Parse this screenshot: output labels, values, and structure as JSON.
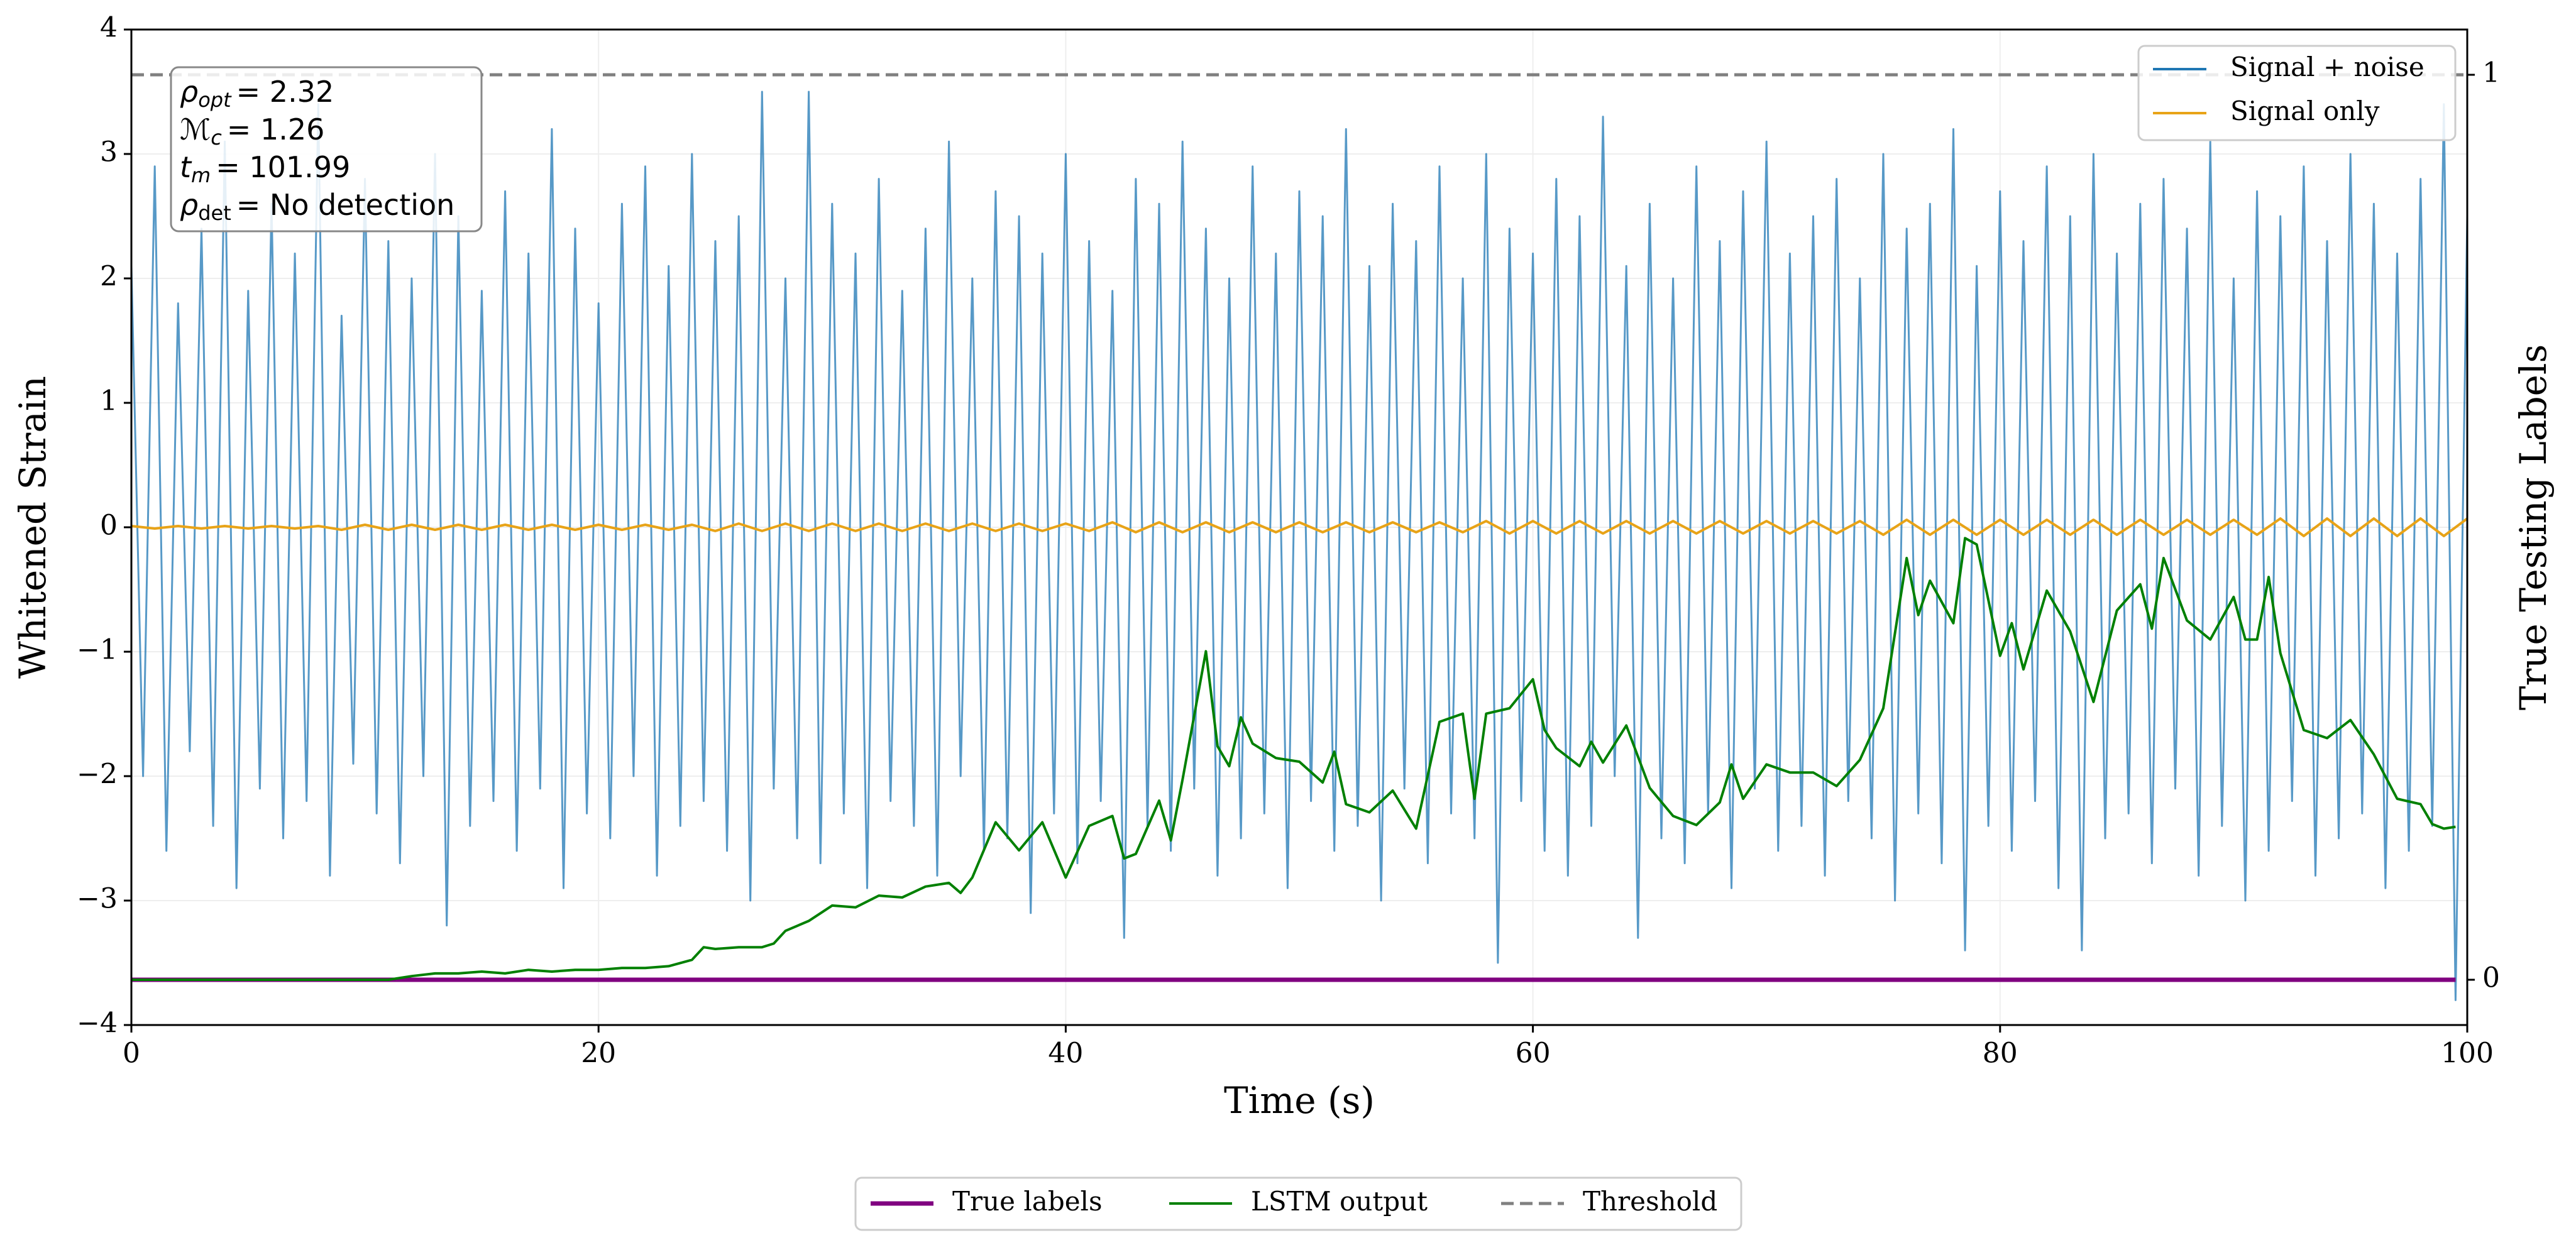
{
  "chart_data": {
    "type": "line",
    "xlabel": "Time (s)",
    "ylabel": "Whitened Strain",
    "y2label": "True Testing Labels",
    "xlim": [
      0,
      100
    ],
    "xticks": [
      0,
      20,
      40,
      60,
      80,
      100
    ],
    "ylim": [
      -4,
      4
    ],
    "yticks": [
      {
        "value": -4,
        "label": "−4"
      },
      {
        "value": -3,
        "label": "−3"
      },
      {
        "value": -2,
        "label": "−2"
      },
      {
        "value": -1,
        "label": "−1"
      },
      0,
      1,
      2,
      3,
      4
    ],
    "y2lim": [
      -0.05,
      1.05
    ],
    "y2ticks": [
      0,
      1
    ],
    "grid": true,
    "legend": "upper right",
    "legend2": "lower center",
    "annotations": [
      {
        "symbol": "ρ",
        "subscript": "opt",
        "text": "= 2.32"
      },
      {
        "symbol": "ℳ",
        "subscript": "c",
        "text": "= 1.26"
      },
      {
        "symbol": "t",
        "subscript": "m",
        "text": "= 101.99"
      },
      {
        "symbol": "ρ",
        "subscript": "det",
        "text": "= No detection"
      }
    ],
    "series": [
      {
        "name": "Signal + noise",
        "color": "#1f77b4",
        "x": [
          0,
          0.5,
          1,
          1.5,
          2,
          2.5,
          3,
          3.5,
          4,
          4.5,
          5,
          5.5,
          6,
          6.5,
          7,
          7.5,
          8,
          8.5,
          9,
          9.5,
          10,
          10.5,
          11,
          11.5,
          12,
          12.5,
          13,
          13.5,
          14,
          14.5,
          15,
          15.5,
          16,
          16.5,
          17,
          17.5,
          18,
          18.5,
          19,
          19.5,
          20,
          20.5,
          21,
          21.5,
          22,
          22.5,
          23,
          23.5,
          24,
          24.5,
          25,
          25.5,
          26,
          26.5,
          27,
          27.5,
          28,
          28.5,
          29,
          29.5,
          30,
          30.5,
          31,
          31.5,
          32,
          32.5,
          33,
          33.5,
          34,
          34.5,
          35,
          35.5,
          36,
          36.5,
          37,
          37.5,
          38,
          38.5,
          39,
          39.5,
          40,
          40.5,
          41,
          41.5,
          42,
          42.5,
          43,
          43.5,
          44,
          44.5,
          45,
          45.5,
          46,
          46.5,
          47,
          47.5,
          48,
          48.5,
          49,
          49.5,
          50,
          50.5,
          51,
          51.5,
          52,
          52.5,
          53,
          53.5,
          54,
          54.5,
          55,
          55.5,
          56,
          56.5,
          57,
          57.5,
          58,
          58.5,
          59,
          59.5,
          60,
          60.5,
          61,
          61.5,
          62,
          62.5,
          63,
          63.5,
          64,
          64.5,
          65,
          65.5,
          66,
          66.5,
          67,
          67.5,
          68,
          68.5,
          69,
          69.5,
          70,
          70.5,
          71,
          71.5,
          72,
          72.5,
          73,
          73.5,
          74,
          74.5,
          75,
          75.5,
          76,
          76.5,
          77,
          77.5,
          78,
          78.5,
          79,
          79.5,
          80,
          80.5,
          81,
          81.5,
          82,
          82.5,
          83,
          83.5,
          84,
          84.5,
          85,
          85.5,
          86,
          86.5,
          87,
          87.5,
          88,
          88.5,
          89,
          89.5,
          90,
          90.5,
          91,
          91.5,
          92,
          92.5,
          93,
          93.5,
          94,
          94.5,
          95,
          95.5,
          96,
          96.5,
          97,
          97.5,
          98,
          98.5,
          99,
          99.5,
          100
        ],
        "values": [
          2.1,
          -2.0,
          2.9,
          -2.6,
          1.8,
          -1.8,
          2.4,
          -2.4,
          3.1,
          -2.9,
          1.9,
          -2.1,
          2.6,
          -2.5,
          2.2,
          -2.2,
          3.4,
          -2.8,
          1.7,
          -1.9,
          2.8,
          -2.3,
          2.3,
          -2.7,
          2.0,
          -2.0,
          3.0,
          -3.2,
          2.5,
          -2.4,
          1.9,
          -2.2,
          2.7,
          -2.6,
          2.2,
          -2.1,
          3.2,
          -2.9,
          2.4,
          -2.3,
          1.8,
          -2.5,
          2.6,
          -2.0,
          2.9,
          -2.8,
          2.1,
          -2.4,
          3.0,
          -2.2,
          2.3,
          -2.6,
          2.5,
          -3.0,
          3.5,
          -2.1,
          2.0,
          -2.5,
          3.5,
          -2.7,
          2.6,
          -2.3,
          2.2,
          -2.9,
          2.8,
          -2.2,
          1.9,
          -2.4,
          2.4,
          -2.8,
          3.1,
          -2.0,
          2.0,
          -2.6,
          2.7,
          -2.5,
          2.5,
          -3.1,
          2.2,
          -2.3,
          3.0,
          -2.7,
          2.3,
          -2.2,
          1.9,
          -3.3,
          2.8,
          -2.4,
          2.6,
          -2.6,
          3.1,
          -2.1,
          2.4,
          -2.8,
          2.0,
          -2.5,
          2.9,
          -2.3,
          2.2,
          -2.9,
          2.7,
          -2.2,
          2.5,
          -2.6,
          3.2,
          -2.4,
          2.1,
          -3.0,
          2.6,
          -2.1,
          2.3,
          -2.7,
          2.9,
          -2.3,
          2.0,
          -2.5,
          3.0,
          -3.5,
          2.4,
          -2.2,
          2.2,
          -2.6,
          2.8,
          -2.8,
          2.5,
          -2.4,
          3.3,
          -2.0,
          2.1,
          -3.3,
          2.6,
          -2.5,
          2.0,
          -2.7,
          2.9,
          -2.3,
          2.3,
          -2.9,
          2.7,
          -2.1,
          3.1,
          -2.6,
          2.2,
          -2.4,
          2.5,
          -2.8,
          2.8,
          -2.2,
          2.0,
          -2.5,
          3.0,
          -3.0,
          2.4,
          -2.3,
          2.6,
          -2.7,
          3.2,
          -3.4,
          2.1,
          -2.4,
          2.7,
          -2.6,
          2.3,
          -2.2,
          2.9,
          -2.9,
          2.5,
          -3.4,
          3.0,
          -2.5,
          2.2,
          -2.3,
          2.6,
          -2.7,
          2.8,
          -2.1,
          2.4,
          -2.8,
          3.1,
          -2.4,
          2.0,
          -3.0,
          2.7,
          -2.6,
          2.5,
          -2.2,
          2.9,
          -2.8,
          2.3,
          -2.5,
          3.0,
          -2.3,
          2.6,
          -2.9,
          2.2,
          -2.6,
          2.8,
          -2.4,
          3.4,
          -3.8,
          2.5
        ]
      },
      {
        "name": "Signal only",
        "color": "#e8a317",
        "x": [
          0,
          1,
          2,
          3,
          4,
          5,
          6,
          7,
          8,
          9,
          10,
          11,
          12,
          13,
          14,
          15,
          16,
          17,
          18,
          19,
          20,
          21,
          22,
          23,
          24,
          25,
          26,
          27,
          28,
          29,
          30,
          31,
          32,
          33,
          34,
          35,
          36,
          37,
          38,
          39,
          40,
          41,
          42,
          43,
          44,
          45,
          46,
          47,
          48,
          49,
          50,
          51,
          52,
          53,
          54,
          55,
          56,
          57,
          58,
          59,
          60,
          61,
          62,
          63,
          64,
          65,
          66,
          67,
          68,
          69,
          70,
          71,
          72,
          73,
          74,
          75,
          76,
          77,
          78,
          79,
          80,
          81,
          82,
          83,
          84,
          85,
          86,
          87,
          88,
          89,
          90,
          91,
          92,
          93,
          94,
          95,
          96,
          97,
          98,
          99,
          100
        ],
        "values": [
          0.01,
          -0.01,
          0.01,
          -0.01,
          0.01,
          -0.01,
          0.01,
          -0.01,
          0.01,
          -0.02,
          0.02,
          -0.02,
          0.02,
          -0.02,
          0.02,
          -0.02,
          0.02,
          -0.02,
          0.02,
          -0.02,
          0.02,
          -0.02,
          0.02,
          -0.02,
          0.02,
          -0.03,
          0.03,
          -0.03,
          0.03,
          -0.03,
          0.03,
          -0.03,
          0.03,
          -0.03,
          0.03,
          -0.03,
          0.03,
          -0.03,
          0.03,
          -0.03,
          0.03,
          -0.03,
          0.04,
          -0.04,
          0.04,
          -0.04,
          0.04,
          -0.04,
          0.04,
          -0.04,
          0.04,
          -0.04,
          0.04,
          -0.04,
          0.04,
          -0.04,
          0.04,
          -0.04,
          0.05,
          -0.05,
          0.05,
          -0.05,
          0.05,
          -0.05,
          0.05,
          -0.05,
          0.05,
          -0.05,
          0.05,
          -0.05,
          0.05,
          -0.05,
          0.05,
          -0.05,
          0.05,
          -0.06,
          0.06,
          -0.06,
          0.06,
          -0.06,
          0.06,
          -0.06,
          0.06,
          -0.06,
          0.06,
          -0.06,
          0.06,
          -0.06,
          0.06,
          -0.06,
          0.06,
          -0.06,
          0.07,
          -0.07,
          0.07,
          -0.07,
          0.07,
          -0.07,
          0.07,
          -0.07,
          0.07
        ]
      },
      {
        "name": "True labels",
        "color": "#800080",
        "axis": "y2",
        "x": [
          0,
          99.5
        ],
        "values": [
          0,
          0
        ]
      },
      {
        "name": "LSTM output",
        "color": "#008000",
        "axis": "y2",
        "x": [
          0,
          11,
          12,
          13,
          14,
          15,
          16,
          17,
          18,
          19,
          20,
          21,
          22,
          23,
          24,
          24.5,
          25,
          26,
          27,
          27.5,
          28,
          29,
          30,
          31,
          32,
          33,
          34,
          35,
          35.5,
          36,
          37,
          38,
          39,
          40,
          41,
          42,
          42.5,
          43,
          44,
          44.5,
          45,
          46,
          46.5,
          47,
          47.5,
          48,
          49,
          50,
          51,
          51.5,
          52,
          53,
          54,
          55,
          56,
          57,
          57.5,
          58,
          59,
          60,
          60.5,
          61,
          62,
          62.5,
          63,
          64,
          65,
          66,
          67,
          68,
          68.5,
          69,
          70,
          71,
          72,
          73,
          74,
          75,
          76,
          76.5,
          77,
          78,
          78.5,
          79,
          80,
          80.5,
          81,
          82,
          83,
          84,
          85,
          86,
          86.5,
          87,
          88,
          89,
          90,
          90.5,
          91,
          91.5,
          92,
          93,
          94,
          95,
          96,
          97,
          98,
          98.5,
          99,
          99.5
        ],
        "values": [
          0,
          0,
          0.004,
          0.007,
          0.007,
          0.009,
          0.007,
          0.011,
          0.009,
          0.011,
          0.011,
          0.013,
          0.013,
          0.015,
          0.022,
          0.036,
          0.034,
          0.036,
          0.036,
          0.04,
          0.054,
          0.065,
          0.082,
          0.08,
          0.093,
          0.091,
          0.103,
          0.107,
          0.096,
          0.113,
          0.174,
          0.143,
          0.174,
          0.113,
          0.17,
          0.181,
          0.134,
          0.139,
          0.198,
          0.154,
          0.221,
          0.363,
          0.258,
          0.236,
          0.29,
          0.261,
          0.245,
          0.241,
          0.218,
          0.252,
          0.194,
          0.185,
          0.209,
          0.167,
          0.285,
          0.294,
          0.2,
          0.294,
          0.3,
          0.332,
          0.276,
          0.256,
          0.236,
          0.263,
          0.24,
          0.281,
          0.212,
          0.181,
          0.171,
          0.196,
          0.238,
          0.2,
          0.238,
          0.229,
          0.229,
          0.214,
          0.243,
          0.3,
          0.466,
          0.403,
          0.441,
          0.394,
          0.488,
          0.481,
          0.358,
          0.394,
          0.343,
          0.43,
          0.385,
          0.307,
          0.408,
          0.437,
          0.388,
          0.466,
          0.397,
          0.376,
          0.423,
          0.376,
          0.376,
          0.445,
          0.361,
          0.276,
          0.267,
          0.287,
          0.249,
          0.2,
          0.194,
          0.172,
          0.167,
          0.169
        ]
      },
      {
        "name": "Threshold",
        "color": "#808080",
        "axis": "y2",
        "style": "dashed",
        "x": [
          0,
          100
        ],
        "values": [
          1,
          1
        ]
      }
    ]
  }
}
